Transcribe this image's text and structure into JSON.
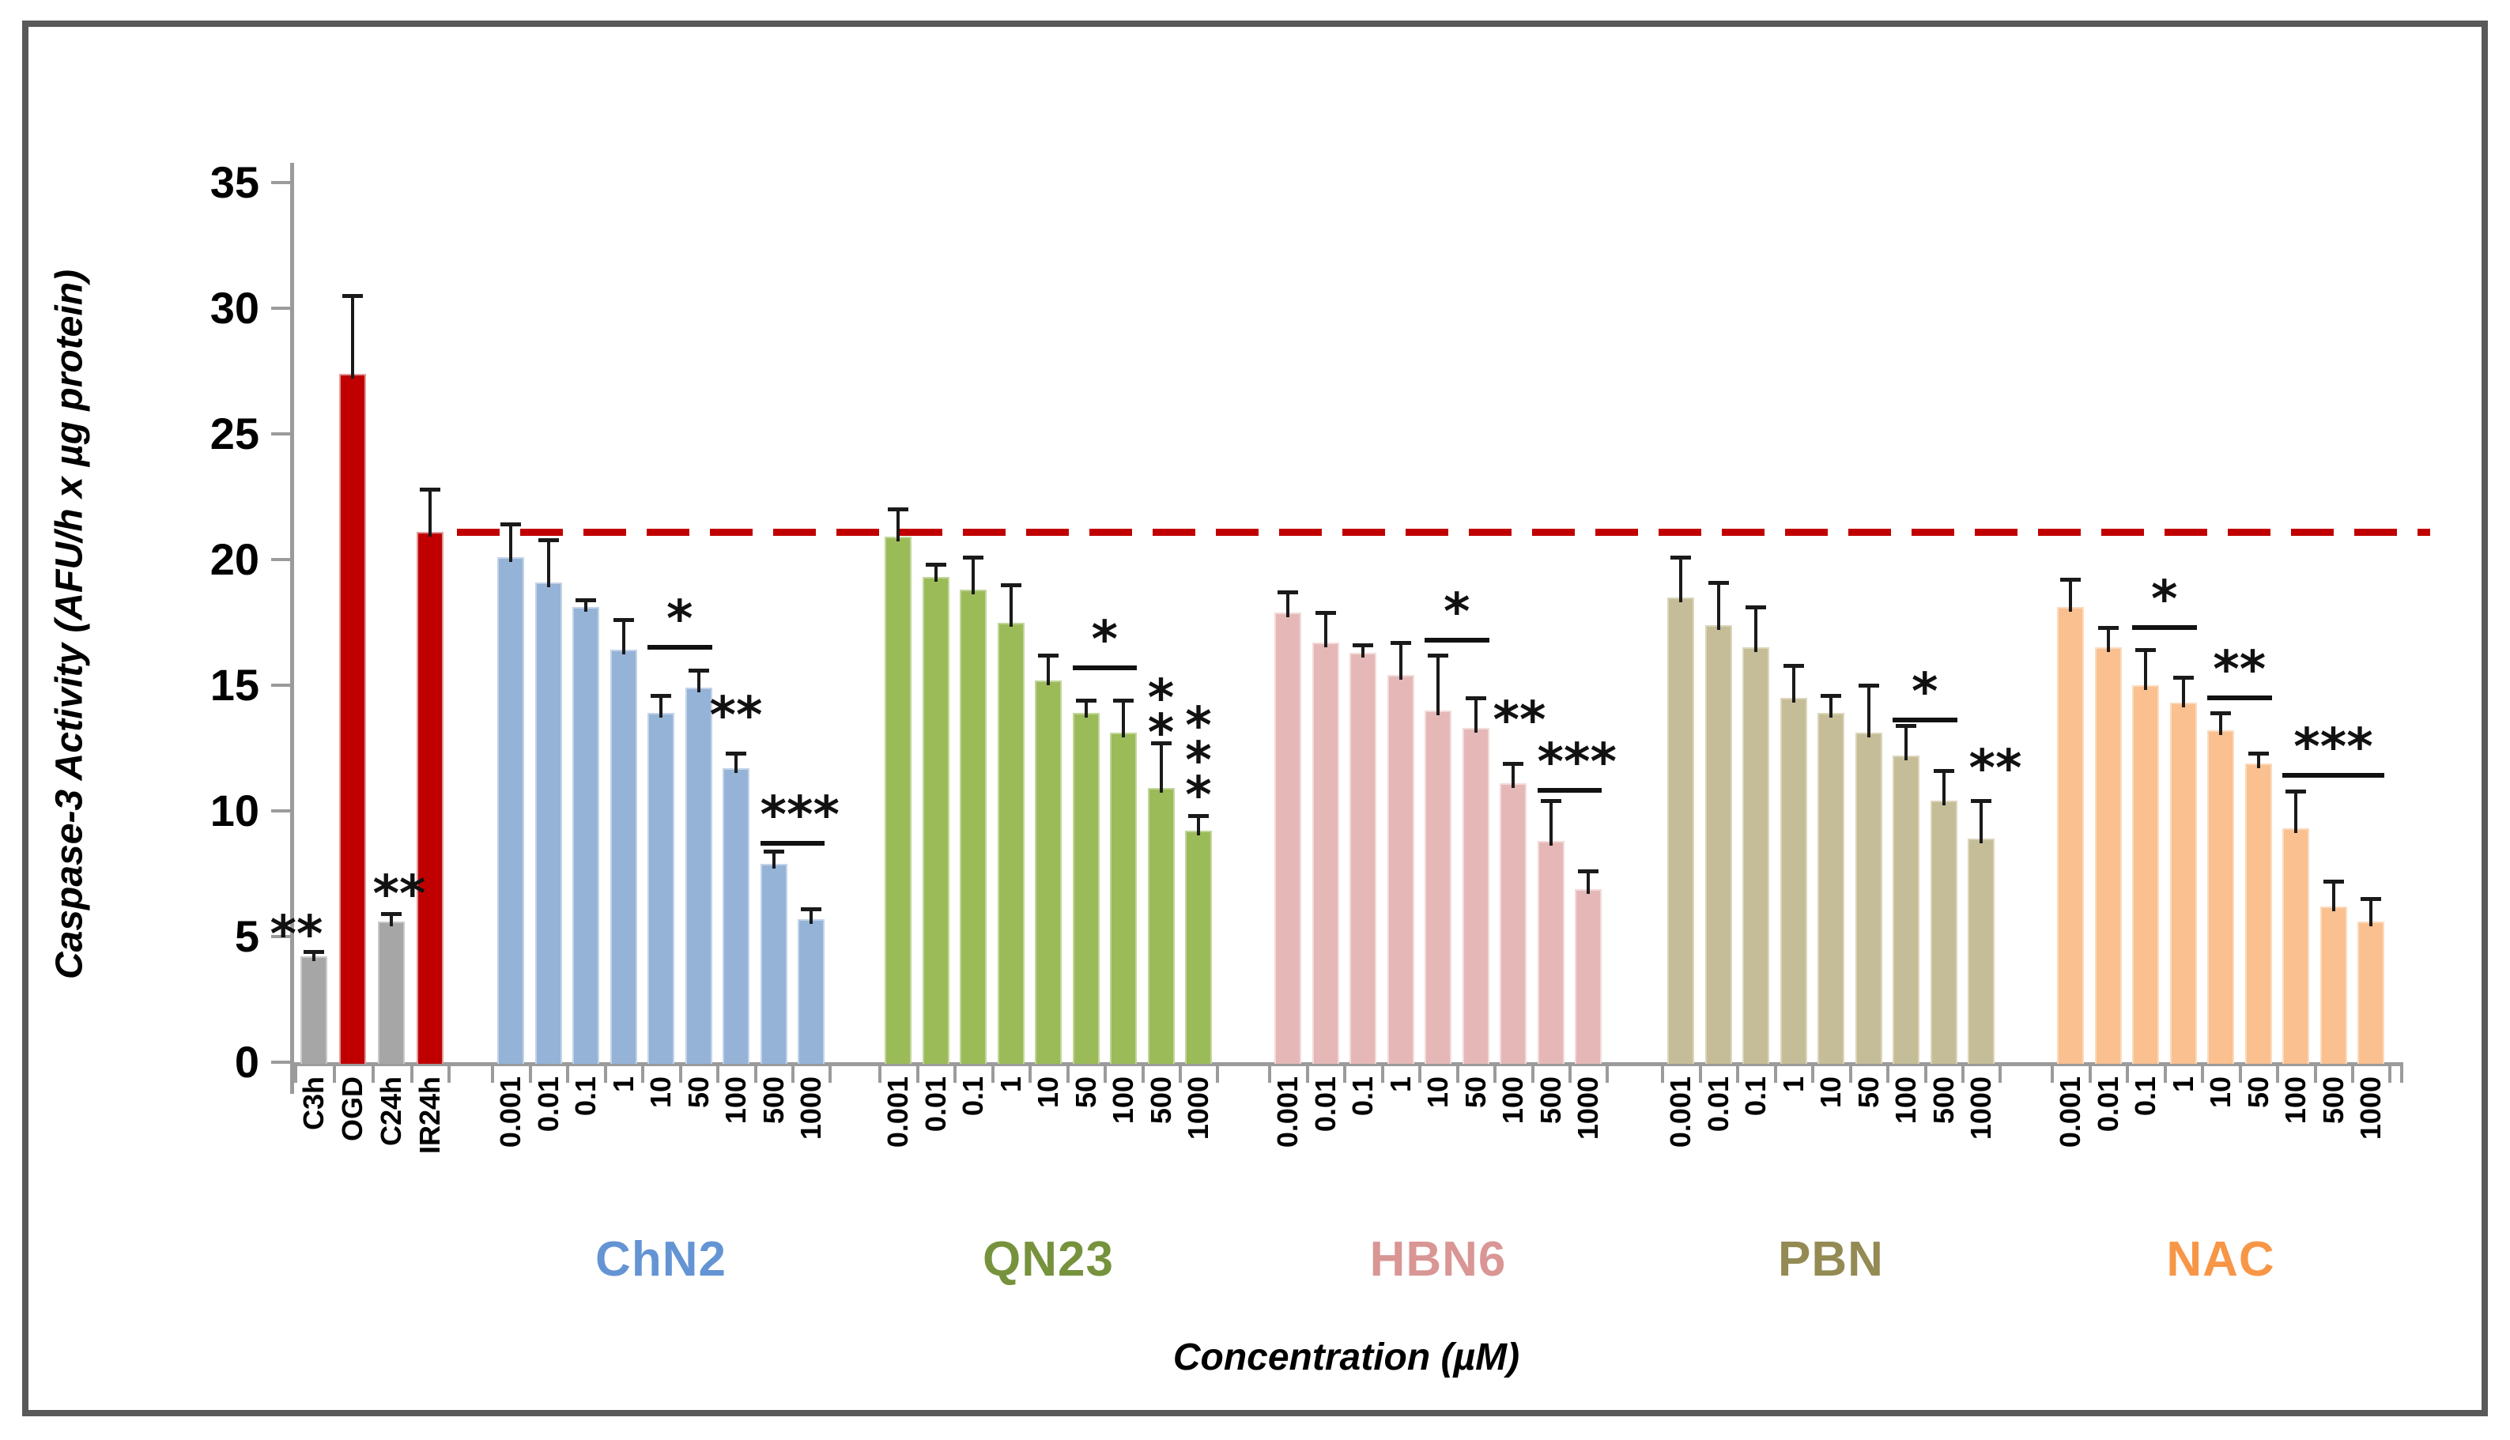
{
  "figure": {
    "border_color": "#595959",
    "background": "#FFFFFF"
  },
  "chart_data": {
    "type": "bar",
    "title": "",
    "ylabel": "Caspase-3 Activity (AFU/h x µg protein)",
    "xlabel": "Concentration (µM)",
    "ylim": [
      0,
      35
    ],
    "yticks": [
      0,
      5,
      10,
      15,
      20,
      25,
      30,
      35
    ],
    "grid": false,
    "legend_position": "none",
    "axis_color": "#9b9b9b",
    "error_bar_color": "#1a1a1a",
    "reference_line": {
      "value": 21.1,
      "style": "dashed",
      "color": "#C00000"
    },
    "groups": [
      {
        "id": "controls",
        "label": "",
        "label_color": "#000000",
        "categories": [
          "C3h",
          "OGD",
          "C24h",
          "IR24h"
        ],
        "values": [
          4.2,
          27.4,
          5.6,
          21.1
        ],
        "errors": [
          0.2,
          3.1,
          0.3,
          1.7
        ],
        "bar_colors": [
          "#A6A6A6",
          "#C00000",
          "#A6A6A6",
          "#C00000"
        ],
        "edge_colors": [
          "#C9C9C9",
          "#DE9C9A",
          "#C9C9C9",
          "#DE9C9A"
        ],
        "sig": [
          {
            "type": "text",
            "bar": 0,
            "text": "**",
            "value": 5.2,
            "dx": -22
          },
          {
            "type": "text",
            "bar": 2,
            "text": "**",
            "value": 6.8,
            "dx": 10
          }
        ]
      },
      {
        "id": "ChN2",
        "label": "ChN2",
        "label_color": "#6494D3",
        "fill": "#95B3D7",
        "edge": "#C3D3E8",
        "categories": [
          "0.001",
          "0.01",
          "0.1",
          "1",
          "10",
          "50",
          "100",
          "500",
          "1000"
        ],
        "values": [
          20.1,
          19.1,
          18.1,
          16.4,
          13.9,
          14.9,
          11.7,
          7.9,
          5.7
        ],
        "errors": [
          1.3,
          1.7,
          0.3,
          1.2,
          0.7,
          0.7,
          0.6,
          0.5,
          0.4
        ],
        "sig": [
          {
            "type": "bracket",
            "from": 4,
            "to": 5,
            "text": "*",
            "value": 16.6
          },
          {
            "type": "text",
            "bar": 6,
            "text": "**",
            "value": 13.9,
            "dx": 0
          },
          {
            "type": "bracket",
            "from": 7,
            "to": 8,
            "text": "***",
            "value": 8.8
          }
        ]
      },
      {
        "id": "QN23",
        "label": "QN23",
        "label_color": "#76923C",
        "fill": "#9BBB59",
        "edge": "#C2D69B",
        "categories": [
          "0.001",
          "0.01",
          "0.1",
          "1",
          "10",
          "50",
          "100",
          "500",
          "1000"
        ],
        "values": [
          20.9,
          19.3,
          18.8,
          17.5,
          15.2,
          13.9,
          13.1,
          10.9,
          9.2
        ],
        "errors": [
          1.1,
          0.5,
          1.3,
          1.5,
          1.0,
          0.5,
          1.3,
          1.8,
          0.6
        ],
        "sig": [
          {
            "type": "bracket",
            "from": 5,
            "to": 6,
            "text": "*",
            "value": 15.8
          },
          {
            "type": "vtext",
            "bar": 7,
            "text": "**",
            "value": 14.6
          },
          {
            "type": "vtext",
            "bar": 8,
            "text": "***",
            "value": 13.5
          }
        ]
      },
      {
        "id": "HBN6",
        "label": "HBN6",
        "label_color": "#D99694",
        "fill": "#E5B8B7",
        "edge": "#F2DBDA",
        "categories": [
          "0.001",
          "0.01",
          "0.1",
          "1",
          "10",
          "50",
          "100",
          "500",
          "1000"
        ],
        "values": [
          17.9,
          16.7,
          16.3,
          15.4,
          14.0,
          13.3,
          11.1,
          8.8,
          6.9
        ],
        "errors": [
          0.8,
          1.2,
          0.3,
          1.3,
          2.2,
          1.2,
          0.8,
          1.6,
          0.7
        ],
        "sig": [
          {
            "type": "bracket",
            "from": 4,
            "to": 5,
            "text": "*",
            "value": 16.9
          },
          {
            "type": "text",
            "bar": 6,
            "text": "**",
            "value": 13.7,
            "dx": 8
          },
          {
            "type": "bracket",
            "from": 7,
            "to": 8,
            "text": "***",
            "value": 10.9
          }
        ]
      },
      {
        "id": "PBN",
        "label": "PBN",
        "label_color": "#948A54",
        "fill": "#C4BD97",
        "edge": "#DBD6BC",
        "categories": [
          "0.001",
          "0.01",
          "0.1",
          "1",
          "10",
          "50",
          "100",
          "500",
          "1000"
        ],
        "values": [
          18.5,
          17.4,
          16.5,
          14.5,
          13.9,
          13.1,
          12.2,
          10.4,
          8.9
        ],
        "errors": [
          1.6,
          1.7,
          1.6,
          1.3,
          0.7,
          1.9,
          1.2,
          1.2,
          1.5
        ],
        "sig": [
          {
            "type": "bracket",
            "from": 6,
            "to": 7,
            "text": "*",
            "value": 13.7
          },
          {
            "type": "text",
            "bar": 8,
            "text": "**",
            "value": 11.8,
            "dx": 18
          }
        ]
      },
      {
        "id": "NAC",
        "label": "NAC",
        "label_color": "#F79646",
        "fill": "#FAC090",
        "edge": "#FBDBBE",
        "categories": [
          "0.001",
          "0.01",
          "0.1",
          "1",
          "10",
          "50",
          "100",
          "500",
          "1000"
        ],
        "values": [
          18.1,
          16.5,
          15.0,
          14.3,
          13.2,
          11.9,
          9.3,
          6.2,
          5.6
        ],
        "errors": [
          1.1,
          0.8,
          1.4,
          1.0,
          0.7,
          0.4,
          1.5,
          1.0,
          0.9
        ],
        "sig": [
          {
            "type": "bracket",
            "from": 2,
            "to": 3,
            "text": "*",
            "value": 17.4
          },
          {
            "type": "bracket",
            "from": 4,
            "to": 5,
            "text": "**",
            "value": 14.6
          },
          {
            "type": "bracket",
            "from": 6,
            "to": 8,
            "text": "***",
            "value": 11.5
          }
        ]
      }
    ]
  }
}
